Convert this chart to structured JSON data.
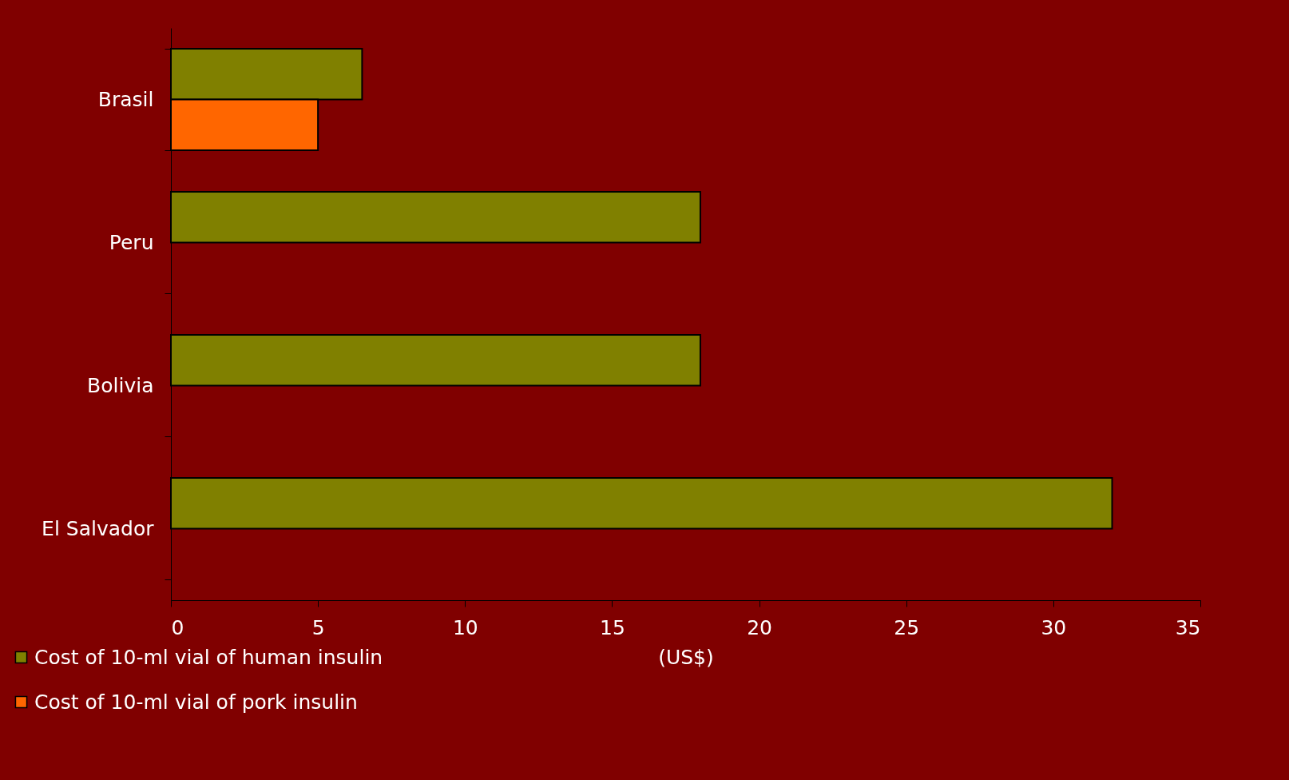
{
  "chart_data": {
    "type": "bar",
    "orientation": "horizontal",
    "xlabel": "(US$)",
    "categories": [
      "Brasil",
      "Peru",
      "Bolivia",
      "El Salvador"
    ],
    "series": [
      {
        "name": "Cost of 10-ml vial of human insulin",
        "color": "#808000",
        "values": [
          6.5,
          18,
          18,
          32
        ]
      },
      {
        "name": "Cost of 10-ml vial of pork insulin",
        "color": "#ff6600",
        "values": [
          5,
          null,
          null,
          null
        ]
      }
    ],
    "xlim": [
      0,
      35
    ],
    "xticks": [
      0,
      5,
      10,
      15,
      20,
      25,
      30,
      35
    ],
    "grid": false,
    "legend": "bottom left"
  }
}
